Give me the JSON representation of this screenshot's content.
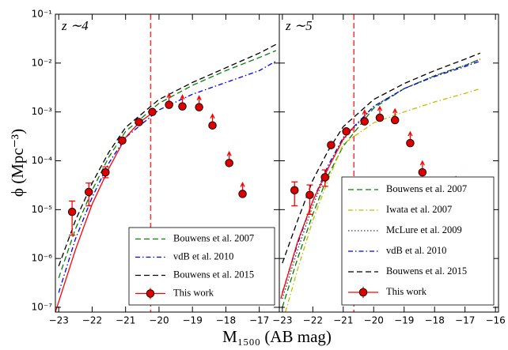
{
  "xlabel": "M₁₅₀₀ (AB mag)",
  "ylabel": "ϕ (Mpc⁻³)",
  "chart_data": [
    {
      "type": "line",
      "label": "z ∼4",
      "log_y": true,
      "ylim": [
        8e-08,
        0.1
      ],
      "xlim": [
        -23.1,
        -16.4
      ],
      "yticks": [
        {
          "value": 0.1,
          "label": "10⁻¹"
        },
        {
          "value": 0.01,
          "label": "10⁻²"
        },
        {
          "value": 0.001,
          "label": "10⁻³"
        },
        {
          "value": 0.0001,
          "label": "10⁻⁴"
        },
        {
          "value": 1e-05,
          "label": "10⁻⁵"
        },
        {
          "value": 1e-06,
          "label": "10⁻⁶"
        },
        {
          "value": 1e-07,
          "label": "10⁻⁷"
        }
      ],
      "xticks": [
        {
          "value": -23,
          "label": "−23"
        },
        {
          "value": -22,
          "label": "−22"
        },
        {
          "value": -21,
          "label": "−21"
        },
        {
          "value": -20,
          "label": "−20"
        },
        {
          "value": -19,
          "label": "−19"
        },
        {
          "value": -18,
          "label": "−18"
        },
        {
          "value": -17,
          "label": "−17"
        }
      ],
      "vline": -20.25,
      "vline_color": "#ff3333",
      "legend": "lower right",
      "series": [
        {
          "name": "Bouwens et al. 2007",
          "color": "#008000",
          "dash": "dashed",
          "x": [
            -23,
            -22.5,
            -22,
            -21.5,
            -21,
            -20,
            -19,
            -18,
            -17,
            -16.5
          ],
          "values": [
            4e-07,
            4e-06,
            2.5e-05,
            0.00012,
            0.0004,
            0.0015,
            0.0035,
            0.007,
            0.013,
            0.018
          ]
        },
        {
          "name": "vdB et al. 2010",
          "color": "#0000ff",
          "dash": "dashdot",
          "x": [
            -23,
            -22.5,
            -22,
            -21.5,
            -21,
            -20,
            -19,
            -18,
            -17,
            -16.5
          ],
          "values": [
            2e-07,
            2.5e-06,
            1.8e-05,
            9e-05,
            0.0003,
            0.0011,
            0.0023,
            0.004,
            0.007,
            0.011
          ]
        },
        {
          "name": "Bouwens et al. 2015",
          "color": "#000000",
          "dash": "dashed",
          "x": [
            -23,
            -22.5,
            -22,
            -21.5,
            -21,
            -20,
            -19,
            -18,
            -17,
            -16.5
          ],
          "values": [
            7e-07,
            6e-06,
            3.5e-05,
            0.00015,
            0.00048,
            0.0018,
            0.004,
            0.008,
            0.016,
            0.024
          ]
        },
        {
          "name": "This work",
          "color": "#ff0000",
          "dash": "solid",
          "marker_color": "#dd0000",
          "fit_x": [
            -23.1,
            -22.5,
            -22,
            -21.5,
            -21,
            -20.6,
            -20.25
          ],
          "fit_values": [
            8e-08,
            1.5e-06,
            1.3e-05,
            7e-05,
            0.0003,
            0.0006,
            0.0009
          ],
          "x": [
            -22.6,
            -22.1,
            -21.6,
            -21.1,
            -20.6,
            -20.2,
            -19.7,
            -19.3,
            -18.8,
            -18.4,
            -17.9,
            -17.5
          ],
          "values": [
            9e-06,
            2.3e-05,
            5.8e-05,
            0.00026,
            0.00062,
            0.001,
            0.0014,
            0.0013,
            0.00125,
            0.00053,
            9e-05,
            2.1e-05
          ],
          "yerr_low": [
            6e-06,
            1.1e-05,
            1.3e-05,
            3e-05,
            5e-05,
            0.0001,
            null,
            null,
            null,
            null,
            null,
            null
          ],
          "yerr_high": [
            6e-06,
            1.2e-05,
            1.7e-05,
            3e-05,
            5e-05,
            0.0001,
            null,
            null,
            null,
            null,
            null,
            null
          ],
          "lower_limit": [
            false,
            false,
            false,
            false,
            false,
            false,
            true,
            true,
            true,
            true,
            true,
            true
          ]
        }
      ]
    },
    {
      "type": "line",
      "label": "z ∼5",
      "log_y": true,
      "ylim": [
        8e-08,
        0.1
      ],
      "xlim": [
        -23.1,
        -15.9
      ],
      "xticks": [
        {
          "value": -23,
          "label": "−23"
        },
        {
          "value": -22,
          "label": "−22"
        },
        {
          "value": -21,
          "label": "−21"
        },
        {
          "value": -20,
          "label": "−20"
        },
        {
          "value": -19,
          "label": "−19"
        },
        {
          "value": -18,
          "label": "−18"
        },
        {
          "value": -17,
          "label": "−17"
        },
        {
          "value": -16,
          "label": "−16"
        }
      ],
      "vline": -20.65,
      "vline_color": "#ff3333",
      "legend": "lower right",
      "series": [
        {
          "name": "Bouwens et al. 2007",
          "color": "#008000",
          "dash": "dashed",
          "x": [
            -23,
            -22.5,
            -22,
            -21.5,
            -21,
            -20,
            -19,
            -18,
            -17,
            -16.5
          ],
          "values": [
            1e-07,
            1e-06,
            8e-06,
            5e-05,
            0.0002,
            0.0012,
            0.003,
            0.0055,
            0.009,
            0.012
          ]
        },
        {
          "name": "Iwata et al. 2007",
          "color": "#bfbf00",
          "dash": "dashdot",
          "x": [
            -22.9,
            -22.5,
            -22,
            -21.5,
            -21,
            -20,
            -19,
            -18,
            -17,
            -16.5
          ],
          "values": [
            8e-08,
            6e-07,
            6e-06,
            4e-05,
            0.00022,
            0.0006,
            0.001,
            0.0016,
            0.0024,
            0.003
          ]
        },
        {
          "name": "McLure et al. 2009",
          "color": "#333333",
          "dash": "dotted",
          "x": [
            -23,
            -22.5,
            -22,
            -21.5,
            -21,
            -20,
            -19,
            -18,
            -17,
            -16.5
          ],
          "values": [
            1.5e-07,
            1.5e-06,
            1.2e-05,
            7e-05,
            0.00027,
            0.0013,
            0.003,
            0.0055,
            0.009,
            0.012
          ]
        },
        {
          "name": "vdB et al. 2010",
          "color": "#0000ff",
          "dash": "dashdot",
          "x": [
            -23,
            -22.5,
            -22,
            -21.5,
            -21,
            -20,
            -19,
            -18,
            -17,
            -16.5
          ],
          "values": [
            2e-07,
            2e-06,
            1.5e-05,
            8e-05,
            0.0003,
            0.0013,
            0.003,
            0.0053,
            0.0085,
            0.011
          ]
        },
        {
          "name": "Bouwens et al. 2015",
          "color": "#000000",
          "dash": "dashed",
          "x": [
            -23,
            -22.5,
            -22,
            -21.5,
            -21,
            -20,
            -19,
            -18,
            -17,
            -16.5
          ],
          "values": [
            8e-07,
            6e-06,
            4e-05,
            0.00016,
            0.0005,
            0.0018,
            0.0038,
            0.007,
            0.012,
            0.016
          ]
        },
        {
          "name": "This work",
          "color": "#ff0000",
          "dash": "solid",
          "marker_color": "#dd0000",
          "fit_x": [
            -23.05,
            -22.5,
            -22,
            -21.5,
            -21,
            -20.65
          ],
          "fit_values": [
            1.5e-07,
            2.2e-06,
            1.5e-05,
            7e-05,
            0.00028,
            0.0005
          ],
          "x": [
            -22.6,
            -22.1,
            -21.6,
            -21.4,
            -20.9,
            -20.3,
            -19.8,
            -19.3,
            -18.8,
            -18.4,
            -17.3
          ],
          "values": [
            2.5e-05,
            2e-05,
            4.6e-05,
            0.00021,
            0.0004,
            0.00064,
            0.00076,
            0.00068,
            0.00023,
            5.8e-05,
            2.8e-05
          ],
          "yerr_low": [
            1.3e-05,
            1.2e-05,
            1.6e-05,
            2e-05,
            4e-05,
            null,
            null,
            null,
            null,
            null,
            null
          ],
          "yerr_high": [
            1.2e-05,
            1.2e-05,
            1.9e-05,
            2e-05,
            4e-05,
            null,
            null,
            null,
            null,
            null,
            null
          ],
          "lower_limit": [
            false,
            false,
            false,
            false,
            false,
            true,
            true,
            true,
            true,
            true,
            true
          ]
        }
      ]
    }
  ]
}
